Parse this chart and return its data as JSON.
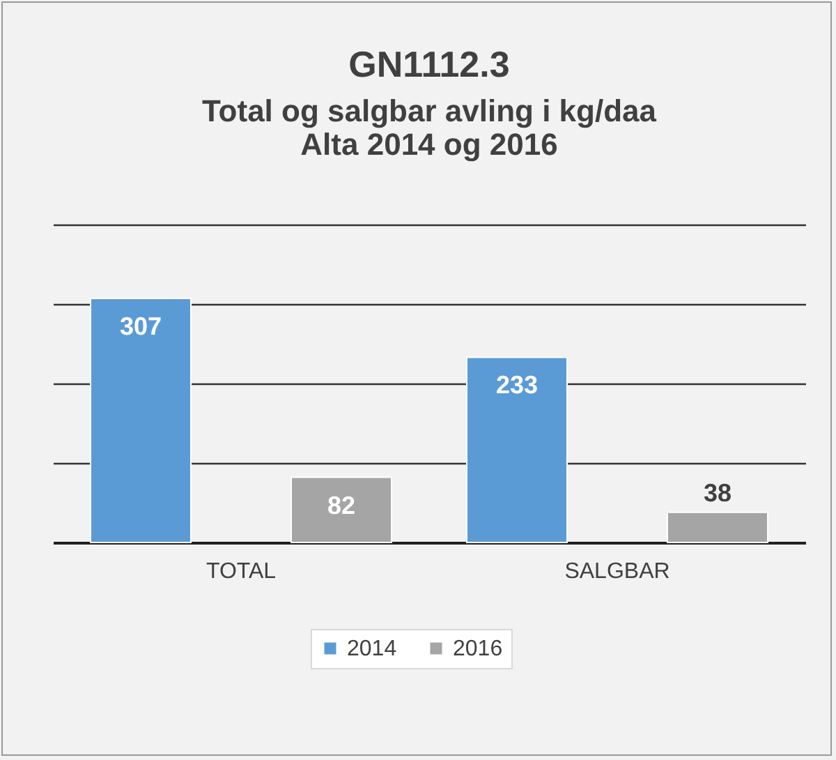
{
  "chart_data": {
    "type": "bar",
    "title": "GN1112.3",
    "subtitle": "Total og salgbar avling i kg/daa\nAlta 2014 og 2016",
    "categories": [
      "TOTAL",
      "SALGBAR"
    ],
    "series": [
      {
        "name": "2014",
        "color": "#5b9bd5",
        "values": [
          307,
          233
        ]
      },
      {
        "name": "2016",
        "color": "#a5a5a5",
        "values": [
          82,
          38
        ]
      }
    ],
    "ylim": [
      0,
      400
    ],
    "yticks": [
      {
        "value": 0,
        "label": null
      },
      {
        "value": 100,
        "label": null
      },
      {
        "value": 200,
        "label": null
      },
      {
        "value": 300,
        "label": null
      },
      {
        "value": 400,
        "label": null
      }
    ],
    "grid": "y",
    "tick_labels": "x",
    "legend": "bottom",
    "data_labels": true
  }
}
